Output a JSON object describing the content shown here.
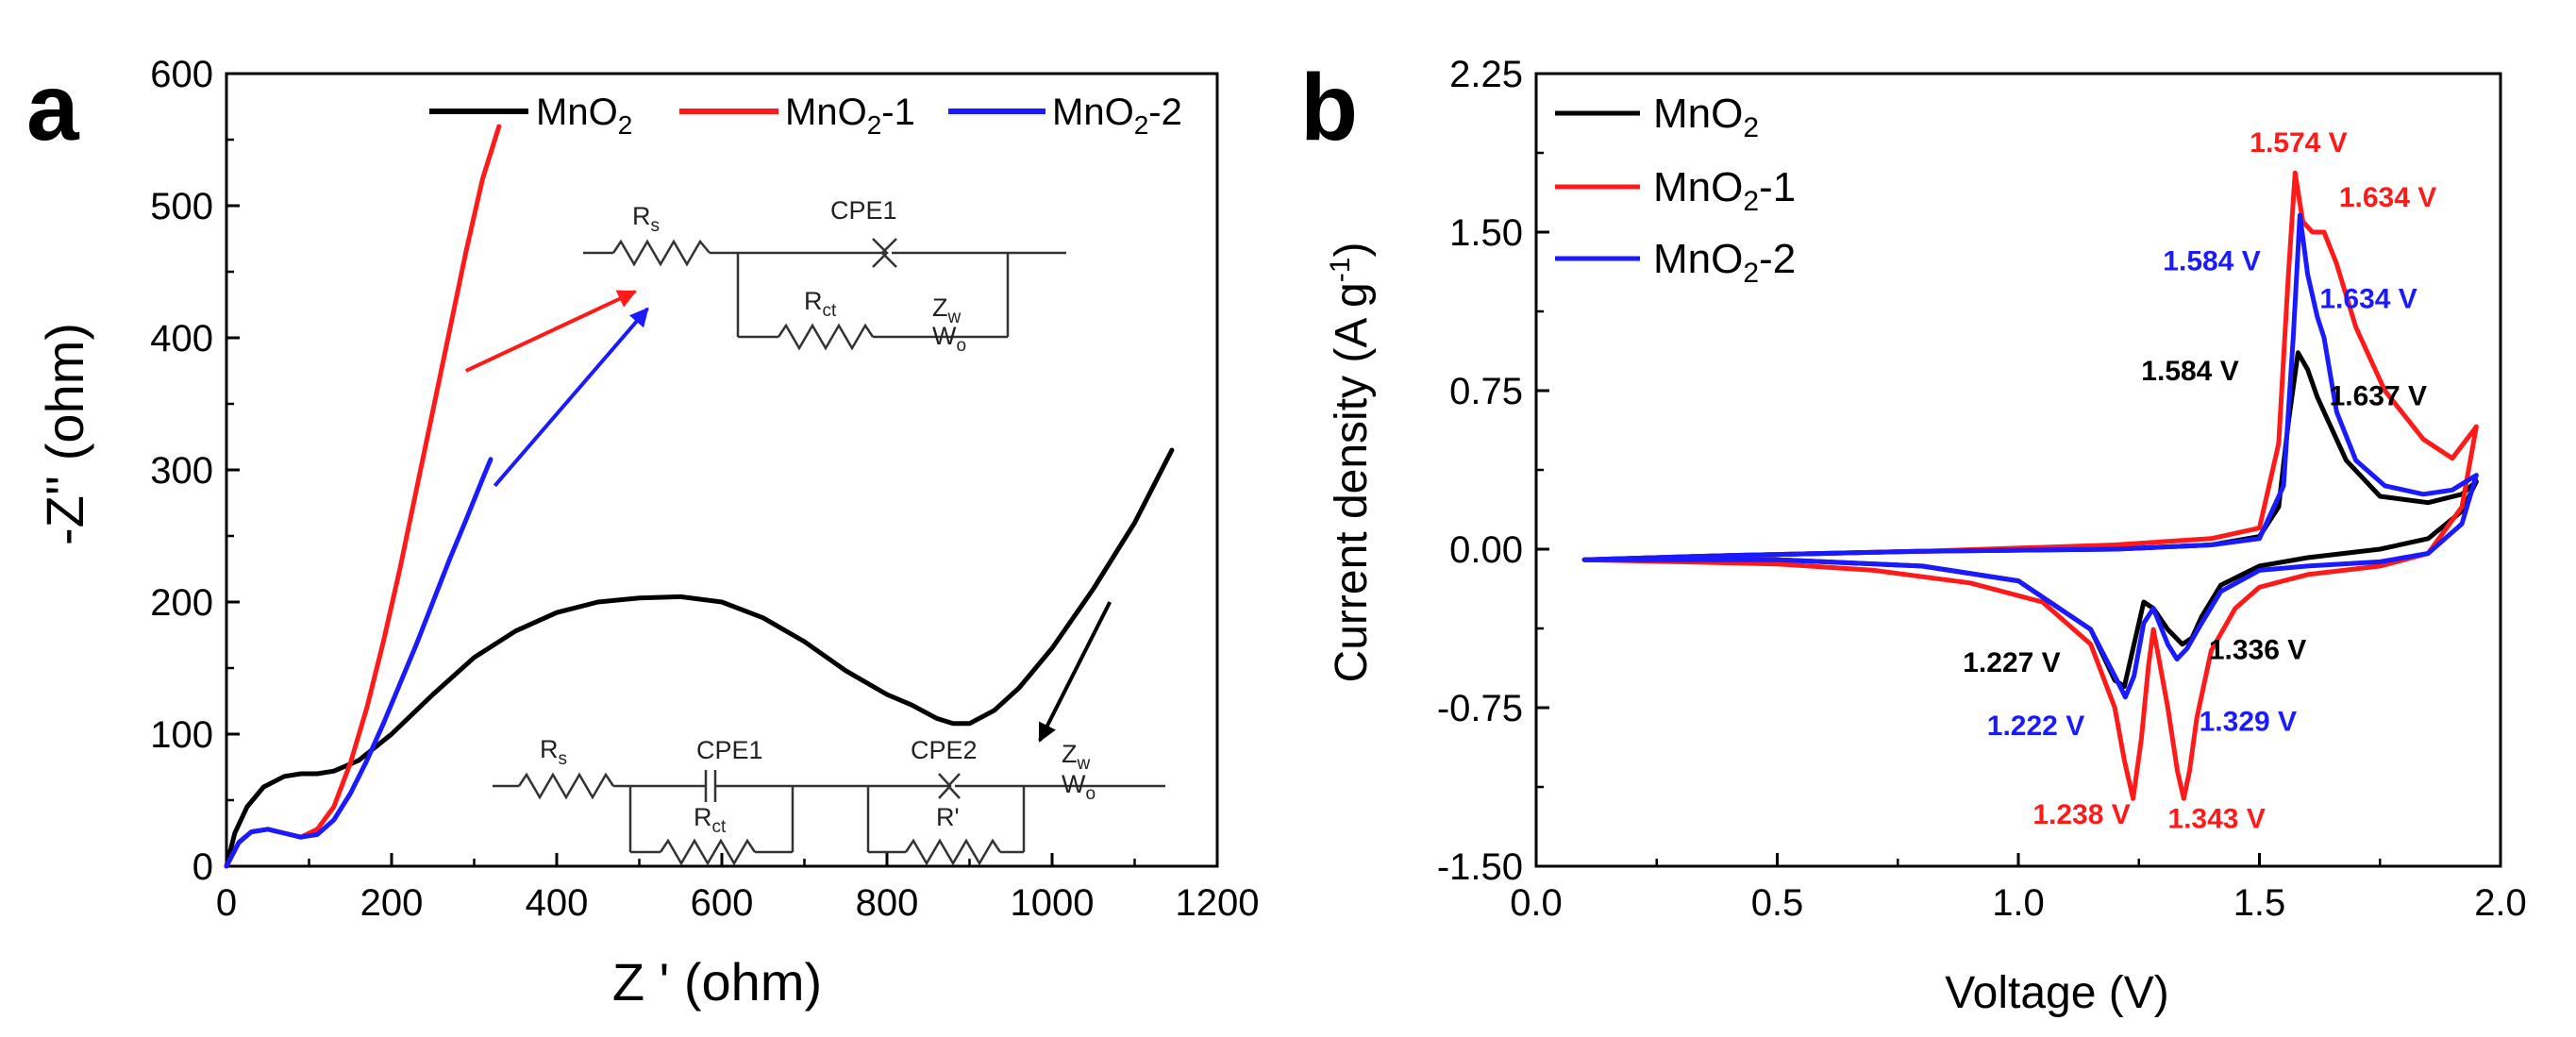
{
  "colors": {
    "MnO2": "#000000",
    "MnO2-1": "#ff1a1a",
    "MnO2-2": "#1a1aff"
  },
  "chart_data": [
    {
      "panel": "a",
      "type": "line",
      "xlabel": "Z ' (ohm)",
      "ylabel": "-Z'' (ohm)",
      "xlim": [
        0,
        1200
      ],
      "ylim": [
        0,
        600
      ],
      "xticks": [
        "0",
        "200",
        "400",
        "600",
        "800",
        "1000",
        "1200"
      ],
      "yticks": [
        "0",
        "100",
        "200",
        "300",
        "400",
        "500",
        "600"
      ],
      "legend": [
        {
          "base": "MnO",
          "sub": "2",
          "suffix": ""
        },
        {
          "base": "MnO",
          "sub": "2",
          "suffix": "-1"
        },
        {
          "base": "MnO",
          "sub": "2",
          "suffix": "-2"
        }
      ],
      "series": [
        {
          "name": "MnO2",
          "color": "#000000",
          "x": [
            0,
            10,
            25,
            45,
            70,
            90,
            110,
            130,
            160,
            200,
            250,
            300,
            350,
            400,
            450,
            500,
            550,
            600,
            650,
            700,
            750,
            800,
            830,
            860,
            880,
            900,
            930,
            960,
            1000,
            1050,
            1100,
            1145
          ],
          "y": [
            0,
            25,
            45,
            60,
            68,
            70,
            70,
            72,
            80,
            100,
            130,
            158,
            178,
            192,
            200,
            203,
            204,
            200,
            188,
            170,
            148,
            130,
            122,
            112,
            108,
            108,
            118,
            135,
            165,
            210,
            260,
            315
          ]
        },
        {
          "name": "MnO2-1",
          "color": "#ff1a1a",
          "x": [
            0,
            15,
            30,
            50,
            70,
            90,
            110,
            130,
            150,
            170,
            190,
            210,
            230,
            250,
            270,
            290,
            310,
            330
          ],
          "y": [
            0,
            18,
            26,
            28,
            25,
            22,
            28,
            45,
            78,
            120,
            170,
            225,
            285,
            345,
            405,
            465,
            520,
            560
          ]
        },
        {
          "name": "MnO2-2",
          "color": "#1a1aff",
          "x": [
            0,
            15,
            30,
            50,
            70,
            90,
            110,
            130,
            150,
            170,
            190,
            210,
            230,
            250,
            270,
            290,
            310,
            320
          ],
          "y": [
            0,
            18,
            26,
            28,
            25,
            22,
            24,
            35,
            55,
            80,
            108,
            138,
            168,
            200,
            232,
            262,
            293,
            308
          ]
        }
      ],
      "arrows": [
        {
          "color": "#ff1a1a",
          "from": [
            290,
            375
          ],
          "to": [
            495,
            435
          ]
        },
        {
          "color": "#1a1aff",
          "from": [
            325,
            288
          ],
          "to": [
            510,
            422
          ]
        },
        {
          "color": "#000000",
          "from": [
            1070,
            200
          ],
          "to": [
            985,
            95
          ]
        }
      ],
      "circuit1": {
        "rs": "R",
        "rs_sub": "s",
        "cpe": "CPE1",
        "rct": "R",
        "rct_sub": "ct",
        "zw": "Z",
        "zw_sub": "w",
        "wo": "W",
        "wo_sub": "o"
      },
      "circuit2": {
        "rs": "R",
        "rs_sub": "s",
        "cpe1": "CPE1",
        "rct": "R",
        "rct_sub": "ct",
        "cpe2": "CPE2",
        "rp": "R'",
        "zw": "Z",
        "zw_sub": "w",
        "wo": "W",
        "wo_sub": "o"
      }
    },
    {
      "panel": "b",
      "type": "line",
      "xlabel": "Voltage (V)",
      "ylabel_base": "Current density (A g",
      "ylabel_sup": "-1",
      "ylabel_end": ")",
      "xlim": [
        0.0,
        2.0
      ],
      "ylim": [
        -1.5,
        2.25
      ],
      "xticks": [
        "0.0",
        "0.5",
        "1.0",
        "1.5",
        "2.0"
      ],
      "yticks": [
        "-1.50",
        "-0.75",
        "0.00",
        "0.75",
        "1.50",
        "2.25"
      ],
      "legend": [
        {
          "base": "MnO",
          "sub": "2",
          "suffix": ""
        },
        {
          "base": "MnO",
          "sub": "2",
          "suffix": "-1"
        },
        {
          "base": "MnO",
          "sub": "2",
          "suffix": "-2"
        }
      ],
      "series": [
        {
          "name": "MnO2",
          "color": "#000000",
          "x": [
            0.1,
            0.4,
            0.8,
            1.2,
            1.4,
            1.5,
            1.54,
            1.56,
            1.58,
            1.6,
            1.62,
            1.64,
            1.68,
            1.75,
            1.85,
            1.92,
            1.95,
            1.92,
            1.85,
            1.75,
            1.6,
            1.5,
            1.42,
            1.38,
            1.36,
            1.34,
            1.31,
            1.28,
            1.26,
            1.24,
            1.22,
            1.2,
            1.15,
            1.0,
            0.8,
            0.5,
            0.1
          ],
          "y": [
            -0.05,
            -0.03,
            -0.01,
            0.0,
            0.02,
            0.06,
            0.2,
            0.6,
            0.93,
            0.85,
            0.72,
            0.62,
            0.42,
            0.25,
            0.22,
            0.26,
            0.32,
            0.18,
            0.05,
            0.0,
            -0.04,
            -0.08,
            -0.17,
            -0.32,
            -0.42,
            -0.45,
            -0.38,
            -0.28,
            -0.25,
            -0.45,
            -0.65,
            -0.62,
            -0.38,
            -0.15,
            -0.08,
            -0.05,
            -0.05
          ]
        },
        {
          "name": "MnO2-1",
          "color": "#ff1a1a",
          "x": [
            0.1,
            0.4,
            0.8,
            1.2,
            1.4,
            1.5,
            1.54,
            1.56,
            1.574,
            1.59,
            1.61,
            1.634,
            1.66,
            1.7,
            1.76,
            1.84,
            1.9,
            1.95,
            1.92,
            1.85,
            1.75,
            1.6,
            1.5,
            1.45,
            1.4,
            1.37,
            1.355,
            1.343,
            1.33,
            1.31,
            1.29,
            1.28,
            1.27,
            1.255,
            1.238,
            1.22,
            1.2,
            1.15,
            1.05,
            0.9,
            0.7,
            0.5,
            0.3,
            0.1
          ],
          "y": [
            -0.05,
            -0.03,
            -0.01,
            0.02,
            0.05,
            0.1,
            0.5,
            1.3,
            1.78,
            1.55,
            1.5,
            1.5,
            1.35,
            1.05,
            0.75,
            0.52,
            0.43,
            0.58,
            0.2,
            -0.02,
            -0.08,
            -0.12,
            -0.18,
            -0.28,
            -0.48,
            -0.8,
            -1.05,
            -1.18,
            -1.05,
            -0.75,
            -0.5,
            -0.38,
            -0.55,
            -0.9,
            -1.18,
            -1.0,
            -0.75,
            -0.45,
            -0.25,
            -0.16,
            -0.1,
            -0.07,
            -0.06,
            -0.05
          ]
        },
        {
          "name": "MnO2-2",
          "color": "#1a1aff",
          "x": [
            0.1,
            0.4,
            0.8,
            1.2,
            1.4,
            1.5,
            1.55,
            1.57,
            1.584,
            1.6,
            1.62,
            1.634,
            1.66,
            1.7,
            1.76,
            1.84,
            1.9,
            1.95,
            1.92,
            1.85,
            1.75,
            1.6,
            1.5,
            1.42,
            1.38,
            1.35,
            1.329,
            1.31,
            1.28,
            1.26,
            1.24,
            1.222,
            1.2,
            1.15,
            1.0,
            0.8,
            0.5,
            0.1
          ],
          "y": [
            -0.05,
            -0.03,
            -0.01,
            0.0,
            0.02,
            0.05,
            0.3,
            1.0,
            1.58,
            1.3,
            1.1,
            1.0,
            0.65,
            0.42,
            0.3,
            0.26,
            0.28,
            0.35,
            0.12,
            -0.02,
            -0.06,
            -0.08,
            -0.1,
            -0.2,
            -0.35,
            -0.47,
            -0.52,
            -0.45,
            -0.28,
            -0.35,
            -0.6,
            -0.7,
            -0.6,
            -0.38,
            -0.15,
            -0.08,
            -0.05,
            -0.05
          ]
        }
      ],
      "annotations": [
        {
          "text": "1.574 V",
          "color": "#ff1a1a",
          "at": [
            1.48,
            1.88
          ]
        },
        {
          "text": "1.634 V",
          "color": "#ff1a1a",
          "at": [
            1.665,
            1.62
          ]
        },
        {
          "text": "1.584 V",
          "color": "#1a1aff",
          "at": [
            1.3,
            1.32
          ]
        },
        {
          "text": "1.634 V",
          "color": "#1a1aff",
          "at": [
            1.625,
            1.14
          ]
        },
        {
          "text": "1.584 V",
          "color": "#000000",
          "at": [
            1.255,
            0.8
          ]
        },
        {
          "text": "1.637 V",
          "color": "#000000",
          "at": [
            1.645,
            0.68
          ]
        },
        {
          "text": "1.227 V",
          "color": "#000000",
          "at": [
            0.885,
            -0.58
          ]
        },
        {
          "text": "1.336 V",
          "color": "#000000",
          "at": [
            1.395,
            -0.52
          ]
        },
        {
          "text": "1.222 V",
          "color": "#1a1aff",
          "at": [
            0.935,
            -0.88
          ]
        },
        {
          "text": "1.329 V",
          "color": "#1a1aff",
          "at": [
            1.375,
            -0.86
          ]
        },
        {
          "text": "1.238 V",
          "color": "#ff1a1a",
          "at": [
            1.03,
            -1.3
          ]
        },
        {
          "text": "1.343 V",
          "color": "#ff1a1a",
          "at": [
            1.31,
            -1.32
          ]
        }
      ]
    }
  ]
}
